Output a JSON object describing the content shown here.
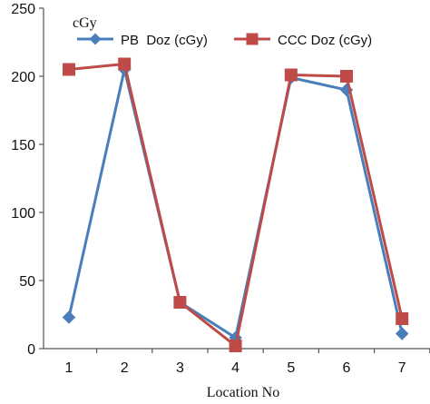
{
  "chart_data": {
    "type": "line",
    "title": "",
    "xlabel": "Location No",
    "ylabel": "cGy",
    "categories": [
      "1",
      "2",
      "3",
      "4",
      "5",
      "6",
      "7"
    ],
    "ylim": [
      0,
      250
    ],
    "yticks": [
      0,
      50,
      100,
      150,
      200,
      250
    ],
    "grid": false,
    "legend_position": "top",
    "series": [
      {
        "name": "PB  Doz (cGy)",
        "values": [
          23,
          205,
          34,
          8,
          199,
          190,
          11
        ],
        "color": "#4a7ebb",
        "marker": "diamond"
      },
      {
        "name": "CCC Doz (cGy)",
        "values": [
          205,
          209,
          34,
          2,
          201,
          200,
          22
        ],
        "color": "#be4b48",
        "marker": "square"
      }
    ]
  }
}
